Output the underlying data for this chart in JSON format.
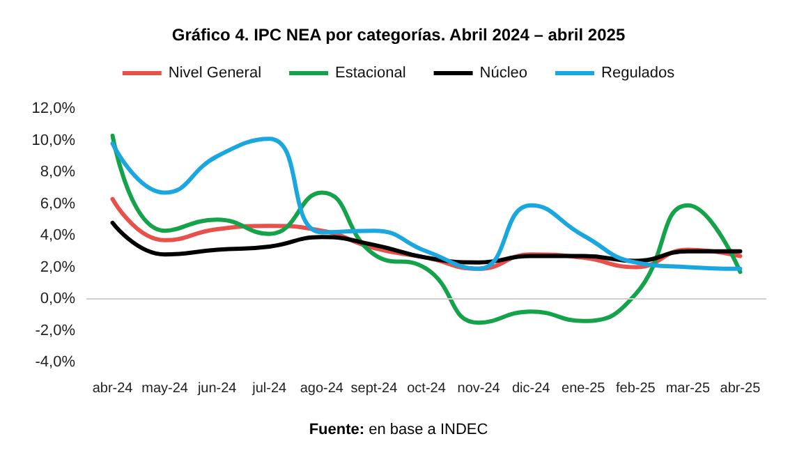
{
  "chart_data": {
    "type": "line",
    "title": "Gráfico 4. IPC NEA por categorías. Abril 2024 – abril 2025",
    "categories": [
      "abr-24",
      "may-24",
      "jun-24",
      "jul-24",
      "ago-24",
      "sept-24",
      "oct-24",
      "nov-24",
      "dic-24",
      "ene-25",
      "feb-25",
      "mar-25",
      "abr-25"
    ],
    "series": [
      {
        "name": "Nivel General",
        "color": "#e8504a",
        "values": [
          6.3,
          3.7,
          4.4,
          4.6,
          4.3,
          3.2,
          2.6,
          1.9,
          2.8,
          2.6,
          2.0,
          3.1,
          2.7
        ]
      },
      {
        "name": "Estacional",
        "color": "#14a24a",
        "values": [
          10.3,
          4.3,
          5.0,
          4.1,
          6.7,
          2.8,
          1.9,
          -1.5,
          -0.8,
          -1.4,
          0.3,
          5.9,
          1.7
        ]
      },
      {
        "name": "Núcleo",
        "color": "#000000",
        "values": [
          4.8,
          2.8,
          3.1,
          3.3,
          3.9,
          3.4,
          2.6,
          2.3,
          2.7,
          2.7,
          2.4,
          3.0,
          3.0
        ]
      },
      {
        "name": "Regulados",
        "color": "#1aa7e0",
        "values": [
          9.8,
          6.7,
          9.0,
          10.1,
          4.2,
          4.3,
          3.0,
          1.9,
          5.9,
          4.0,
          2.3,
          2.0,
          1.9
        ]
      }
    ],
    "ylim": [
      -4,
      12
    ],
    "yticks": [
      {
        "value": -4,
        "label": "-4,0%"
      },
      {
        "value": -2,
        "label": "-2,0%"
      },
      {
        "value": 0,
        "label": "0,0%"
      },
      {
        "value": 2,
        "label": "2,0%"
      },
      {
        "value": 4,
        "label": "4,0%"
      },
      {
        "value": 6,
        "label": "6,0%"
      },
      {
        "value": 8,
        "label": "8,0%"
      },
      {
        "value": 10,
        "label": "10,0%"
      },
      {
        "value": 12,
        "label": "12,0%"
      }
    ],
    "ref_lines": [
      {
        "axis": "y",
        "value": 0,
        "color": "#d0d0d0"
      }
    ],
    "grid": false,
    "legend": "top",
    "marker": "none",
    "line_style": "solid",
    "annotations": [
      "Fuente: en base a INDEC"
    ]
  }
}
